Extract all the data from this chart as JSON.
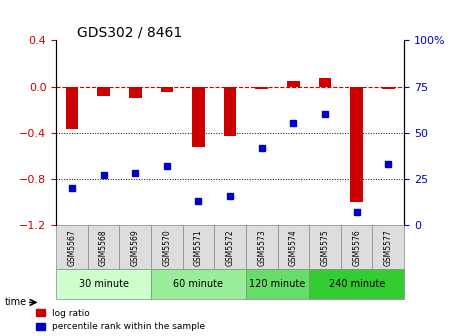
{
  "title": "GDS302 / 8461",
  "samples": [
    "GSM5567",
    "GSM5568",
    "GSM5569",
    "GSM5570",
    "GSM5571",
    "GSM5572",
    "GSM5573",
    "GSM5574",
    "GSM5575",
    "GSM5576",
    "GSM5577"
  ],
  "log_ratio": [
    -0.37,
    -0.08,
    -0.1,
    -0.05,
    -0.52,
    -0.43,
    -0.02,
    0.05,
    0.07,
    -1.0,
    -0.02
  ],
  "percentile_rank": [
    20,
    27,
    28,
    32,
    13,
    16,
    42,
    55,
    60,
    7,
    33
  ],
  "groups": [
    {
      "label": "30 minute",
      "samples": [
        0,
        1,
        2
      ],
      "color": "#ccffcc"
    },
    {
      "label": "60 minute",
      "samples": [
        3,
        4,
        5
      ],
      "color": "#99ee99"
    },
    {
      "label": "120 minute",
      "samples": [
        6,
        7
      ],
      "color": "#66dd66"
    },
    {
      "label": "240 minute",
      "samples": [
        8,
        9,
        10
      ],
      "color": "#33cc33"
    }
  ],
  "ylim_left": [
    -1.2,
    0.4
  ],
  "ylim_right": [
    0,
    100
  ],
  "log_ratio_color": "#cc0000",
  "percentile_color": "#0000cc",
  "hline_color": "#cc0000",
  "grid_color": "#000000",
  "bar_width": 0.4
}
